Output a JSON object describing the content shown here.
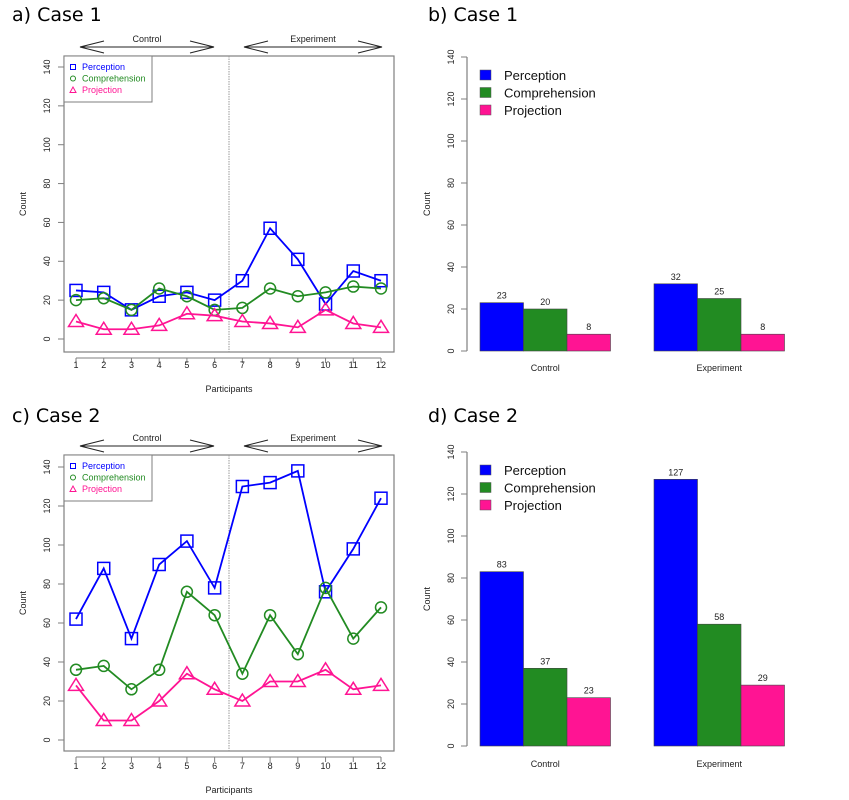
{
  "panels": {
    "a": {
      "title": "a) Case 1"
    },
    "b": {
      "title": "b) Case 1"
    },
    "c": {
      "title": "c) Case 2"
    },
    "d": {
      "title": "d) Case 2"
    }
  },
  "colors": {
    "perception": "#0000ff",
    "comprehension": "#228b22",
    "projection": "#ff1493",
    "axis": "#7f7f7f"
  },
  "chart_data": [
    {
      "id": "a",
      "type": "line",
      "title": "a) Case 1",
      "xlabel": "Participants",
      "ylabel": "Count",
      "x": [
        1,
        2,
        3,
        4,
        5,
        6,
        7,
        8,
        9,
        10,
        11,
        12
      ],
      "ylim": [
        0,
        140
      ],
      "yticks": [
        0,
        20,
        40,
        60,
        80,
        100,
        120,
        140
      ],
      "group_labels": [
        "Control",
        "Experiment"
      ],
      "divider_between": [
        6,
        7
      ],
      "legend": "top-left",
      "series": [
        {
          "name": "Perception",
          "marker": "square",
          "values": [
            25,
            24,
            15,
            22,
            24,
            20,
            30,
            57,
            41,
            18,
            35,
            30
          ]
        },
        {
          "name": "Comprehension",
          "marker": "circle",
          "values": [
            20,
            21,
            15,
            26,
            22,
            15,
            16,
            26,
            22,
            24,
            27,
            26
          ]
        },
        {
          "name": "Projection",
          "marker": "triangle",
          "values": [
            9,
            5,
            5,
            7,
            13,
            12,
            9,
            8,
            6,
            15,
            8,
            6
          ]
        }
      ]
    },
    {
      "id": "b",
      "type": "bar",
      "title": "b) Case 1",
      "xlabel": "",
      "ylabel": "Count",
      "categories": [
        "Control",
        "Experiment"
      ],
      "ylim": [
        0,
        140
      ],
      "yticks": [
        0,
        20,
        40,
        60,
        80,
        100,
        120,
        140
      ],
      "legend": "top-left",
      "series": [
        {
          "name": "Perception",
          "values": [
            23,
            32
          ]
        },
        {
          "name": "Comprehension",
          "values": [
            20,
            25
          ]
        },
        {
          "name": "Projection",
          "values": [
            8,
            8
          ]
        }
      ]
    },
    {
      "id": "c",
      "type": "line",
      "title": "c) Case 2",
      "xlabel": "Participants",
      "ylabel": "Count",
      "x": [
        1,
        2,
        3,
        4,
        5,
        6,
        7,
        8,
        9,
        10,
        11,
        12
      ],
      "ylim": [
        0,
        140
      ],
      "yticks": [
        0,
        20,
        40,
        60,
        80,
        100,
        120,
        140
      ],
      "group_labels": [
        "Control",
        "Experiment"
      ],
      "divider_between": [
        6,
        7
      ],
      "legend": "top-left",
      "series": [
        {
          "name": "Perception",
          "marker": "square",
          "values": [
            62,
            88,
            52,
            90,
            102,
            78,
            130,
            132,
            138,
            76,
            98,
            124
          ]
        },
        {
          "name": "Comprehension",
          "marker": "circle",
          "values": [
            36,
            38,
            26,
            36,
            76,
            64,
            34,
            64,
            44,
            78,
            52,
            68
          ]
        },
        {
          "name": "Projection",
          "marker": "triangle",
          "values": [
            28,
            10,
            10,
            20,
            34,
            26,
            20,
            30,
            30,
            36,
            26,
            28
          ]
        }
      ]
    },
    {
      "id": "d",
      "type": "bar",
      "title": "d) Case 2",
      "xlabel": "",
      "ylabel": "Count",
      "categories": [
        "Control",
        "Experiment"
      ],
      "ylim": [
        0,
        140
      ],
      "yticks": [
        0,
        20,
        40,
        60,
        80,
        100,
        120,
        140
      ],
      "legend": "top-left",
      "series": [
        {
          "name": "Perception",
          "values": [
            83,
            127
          ]
        },
        {
          "name": "Comprehension",
          "values": [
            37,
            58
          ]
        },
        {
          "name": "Projection",
          "values": [
            23,
            29
          ]
        }
      ]
    }
  ]
}
